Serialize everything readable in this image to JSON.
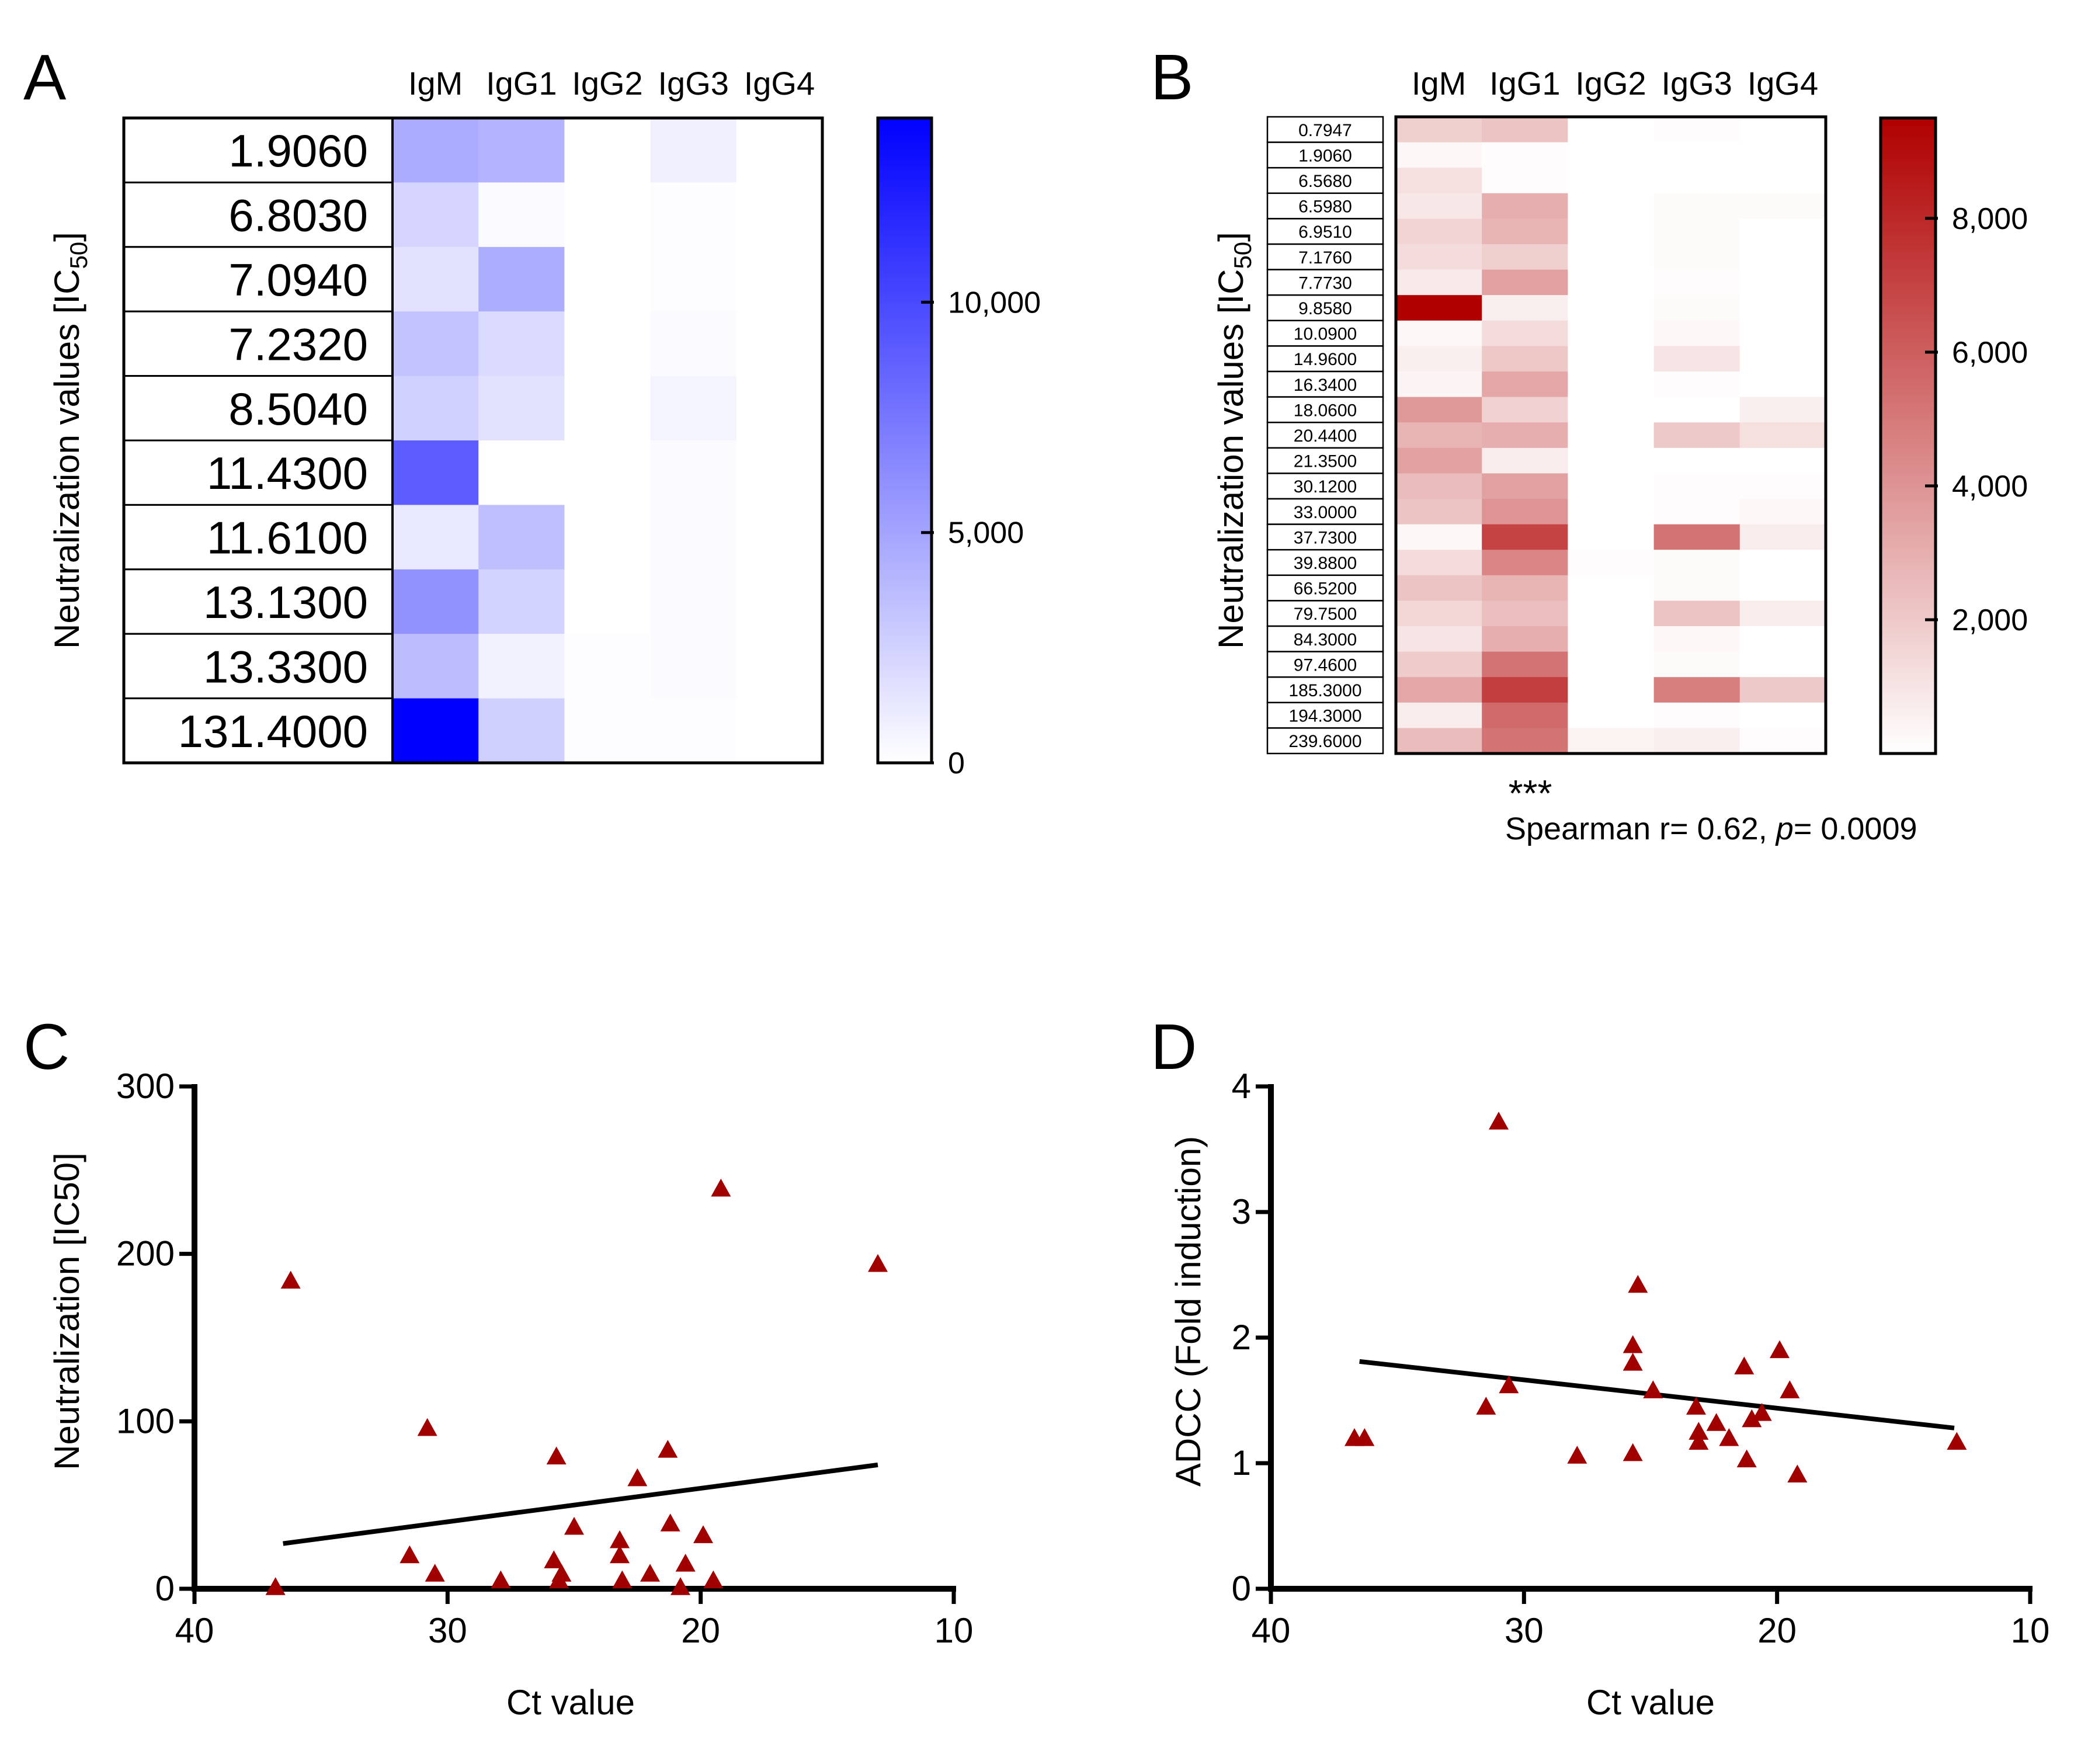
{
  "chart_data": [
    {
      "panel": "A",
      "type": "heatmap",
      "columns": [
        "IgM",
        "IgG1",
        "IgG2",
        "IgG3",
        "IgG4"
      ],
      "rows": [
        "1.9060",
        "6.8030",
        "7.0940",
        "7.2320",
        "8.5040",
        "11.4300",
        "11.6100",
        "13.1300",
        "13.3300",
        "131.4000"
      ],
      "values": [
        [
          4600,
          4200,
          0,
          800,
          0
        ],
        [
          2300,
          300,
          0,
          100,
          0
        ],
        [
          1600,
          4500,
          0,
          100,
          0
        ],
        [
          3300,
          2000,
          0,
          200,
          0
        ],
        [
          2500,
          1600,
          0,
          600,
          0
        ],
        [
          8900,
          0,
          0,
          200,
          0
        ],
        [
          1200,
          3500,
          0,
          200,
          0
        ],
        [
          6000,
          2400,
          0,
          300,
          0
        ],
        [
          3700,
          700,
          100,
          200,
          0
        ],
        [
          14000,
          2600,
          100,
          100,
          0
        ]
      ],
      "ylabel": "Neutralization values [IC",
      "ylabel_sub": "50",
      "ylabel_end": "]",
      "colorbar": {
        "min": 0,
        "max": 14000,
        "ticks": [
          0,
          5000,
          10000
        ],
        "tick_labels": [
          "0",
          "5,000",
          "10,000"
        ],
        "color_low": "#ffffff",
        "color_high": "#0000ff"
      }
    },
    {
      "panel": "B",
      "type": "heatmap",
      "columns": [
        "IgM",
        "IgG1",
        "IgG2",
        "IgG3",
        "IgG4"
      ],
      "rows": [
        "0.7947",
        "1.9060",
        "6.5680",
        "6.5980",
        "6.9510",
        "7.1760",
        "7.7730",
        "9.8580",
        "10.0900",
        "14.9600",
        "16.3400",
        "18.0600",
        "20.4400",
        "21.3500",
        "30.1200",
        "33.0000",
        "37.7300",
        "39.8800",
        "66.5200",
        "79.7500",
        "84.3000",
        "97.4600",
        "185.3000",
        "194.3000",
        "239.6000"
      ],
      "values": [
        [
          1800,
          2200,
          0,
          100,
          0
        ],
        [
          300,
          100,
          0,
          0,
          0
        ],
        [
          1200,
          100,
          0,
          0,
          0
        ],
        [
          900,
          3000,
          0,
          200,
          200
        ],
        [
          1600,
          2800,
          0,
          200,
          0
        ],
        [
          1300,
          1800,
          0,
          200,
          0
        ],
        [
          800,
          3500,
          0,
          100,
          0
        ],
        [
          9500,
          600,
          0,
          200,
          0
        ],
        [
          300,
          1300,
          0,
          300,
          0
        ],
        [
          600,
          2100,
          0,
          1000,
          0
        ],
        [
          400,
          3300,
          0,
          100,
          0
        ],
        [
          3800,
          1700,
          0,
          0,
          600
        ],
        [
          2800,
          3000,
          0,
          2000,
          1200
        ],
        [
          3500,
          700,
          0,
          0,
          0
        ],
        [
          2500,
          3500,
          0,
          100,
          100
        ],
        [
          2200,
          4000,
          0,
          100,
          300
        ],
        [
          300,
          7000,
          0,
          5200,
          700
        ],
        [
          1300,
          4500,
          100,
          200,
          0
        ],
        [
          2200,
          2800,
          0,
          200,
          0
        ],
        [
          1500,
          2400,
          0,
          2200,
          700
        ],
        [
          1000,
          3000,
          0,
          300,
          0
        ],
        [
          1900,
          5200,
          0,
          200,
          0
        ],
        [
          3300,
          7200,
          0,
          4800,
          2000
        ],
        [
          700,
          5500,
          0,
          100,
          0
        ],
        [
          2500,
          5200,
          500,
          600,
          100
        ]
      ],
      "ylabel": "Neutralization values [IC",
      "ylabel_sub": "50",
      "ylabel_end": "]",
      "annotation_stars": "***",
      "annotation_stat_prefix": "Spearman r= 0.62, ",
      "annotation_stat_p": "p",
      "annotation_stat_suffix": "= 0.0009",
      "colorbar": {
        "min": 0,
        "max": 9500,
        "ticks": [
          2000,
          4000,
          6000,
          8000
        ],
        "tick_labels": [
          "2,000",
          "4,000",
          "6,000",
          "8,000"
        ],
        "color_low": "#ffffff",
        "color_high": "#b00000"
      }
    },
    {
      "panel": "C",
      "type": "scatter",
      "xlabel": "Ct value",
      "ylabel": "Neutralization [IC50]",
      "xlim": [
        40,
        10
      ],
      "ylim": [
        0,
        300
      ],
      "xticks": [
        40,
        30,
        20,
        10
      ],
      "yticks": [
        0,
        100,
        200,
        300
      ],
      "marker_color": "#a00000",
      "points": [
        [
          36.8,
          1
        ],
        [
          36.2,
          184
        ],
        [
          31.5,
          20
        ],
        [
          30.8,
          96
        ],
        [
          30.5,
          9
        ],
        [
          27.9,
          5
        ],
        [
          25.8,
          17
        ],
        [
          25.7,
          79
        ],
        [
          25.6,
          5
        ],
        [
          25.5,
          9
        ],
        [
          25.0,
          37
        ],
        [
          23.2,
          29
        ],
        [
          23.2,
          20
        ],
        [
          23.1,
          5
        ],
        [
          22.5,
          66
        ],
        [
          22.0,
          9
        ],
        [
          21.3,
          83
        ],
        [
          21.2,
          39
        ],
        [
          20.8,
          1
        ],
        [
          20.6,
          15
        ],
        [
          19.9,
          32
        ],
        [
          19.5,
          5
        ],
        [
          19.2,
          239
        ],
        [
          13.0,
          194
        ]
      ],
      "fit": {
        "x": [
          36.5,
          13.0
        ],
        "y": [
          27,
          74
        ]
      }
    },
    {
      "panel": "D",
      "type": "scatter",
      "xlabel": "Ct value",
      "ylabel": "ADCC (Fold induction)",
      "xlim": [
        40,
        10
      ],
      "ylim": [
        0,
        4
      ],
      "xticks": [
        40,
        30,
        20,
        10
      ],
      "yticks": [
        0,
        1,
        2,
        3,
        4
      ],
      "marker_color": "#a00000",
      "points": [
        [
          36.7,
          1.2
        ],
        [
          36.3,
          1.2
        ],
        [
          31.5,
          1.45
        ],
        [
          31.0,
          3.72
        ],
        [
          30.6,
          1.62
        ],
        [
          27.9,
          1.06
        ],
        [
          25.7,
          1.94
        ],
        [
          25.7,
          1.8
        ],
        [
          25.7,
          1.08
        ],
        [
          25.5,
          2.42
        ],
        [
          24.9,
          1.58
        ],
        [
          23.2,
          1.45
        ],
        [
          23.1,
          1.25
        ],
        [
          23.1,
          1.17
        ],
        [
          22.4,
          1.32
        ],
        [
          21.9,
          1.2
        ],
        [
          21.3,
          1.77
        ],
        [
          21.2,
          1.03
        ],
        [
          21.0,
          1.35
        ],
        [
          20.6,
          1.4
        ],
        [
          19.9,
          1.9
        ],
        [
          19.5,
          1.58
        ],
        [
          19.2,
          0.91
        ],
        [
          12.9,
          1.17
        ]
      ],
      "fit": {
        "x": [
          36.5,
          13.0
        ],
        "y": [
          1.81,
          1.28
        ]
      }
    }
  ]
}
